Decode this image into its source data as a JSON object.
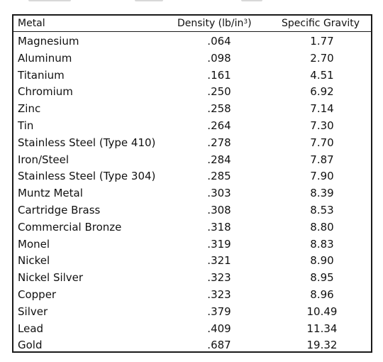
{
  "table": {
    "headers": {
      "metal": "Metal",
      "density_prefix": "Density (lb/in",
      "density_exp": "3",
      "density_suffix": ")",
      "gravity": "Specific Gravity"
    },
    "rows": [
      {
        "metal": "Magnesium",
        "density": ".064",
        "gravity": "1.77"
      },
      {
        "metal": "Aluminum",
        "density": ".098",
        "gravity": "2.70"
      },
      {
        "metal": "Titanium",
        "density": ".161",
        "gravity": "4.51"
      },
      {
        "metal": "Chromium",
        "density": ".250",
        "gravity": "6.92"
      },
      {
        "metal": "Zinc",
        "density": ".258",
        "gravity": "7.14"
      },
      {
        "metal": "Tin",
        "density": ".264",
        "gravity": "7.30"
      },
      {
        "metal": "Stainless Steel (Type 410)",
        "density": ".278",
        "gravity": "7.70"
      },
      {
        "metal": "Iron/Steel",
        "density": ".284",
        "gravity": "7.87"
      },
      {
        "metal": "Stainless Steel (Type 304)",
        "density": ".285",
        "gravity": "7.90"
      },
      {
        "metal": "Muntz Metal",
        "density": ".303",
        "gravity": "8.39"
      },
      {
        "metal": "Cartridge Brass",
        "density": ".308",
        "gravity": "8.53"
      },
      {
        "metal": "Commercial Bronze",
        "density": ".318",
        "gravity": "8.80"
      },
      {
        "metal": "Monel",
        "density": ".319",
        "gravity": "8.83"
      },
      {
        "metal": "Nickel",
        "density": ".321",
        "gravity": "8.90"
      },
      {
        "metal": "Nickel Silver",
        "density": ".323",
        "gravity": "8.95"
      },
      {
        "metal": "Copper",
        "density": ".323",
        "gravity": "8.96"
      },
      {
        "metal": "Silver",
        "density": ".379",
        "gravity": "10.49"
      },
      {
        "metal": "Lead",
        "density": ".409",
        "gravity": "11.34"
      },
      {
        "metal": "Gold",
        "density": ".687",
        "gravity": "19.32"
      }
    ]
  }
}
